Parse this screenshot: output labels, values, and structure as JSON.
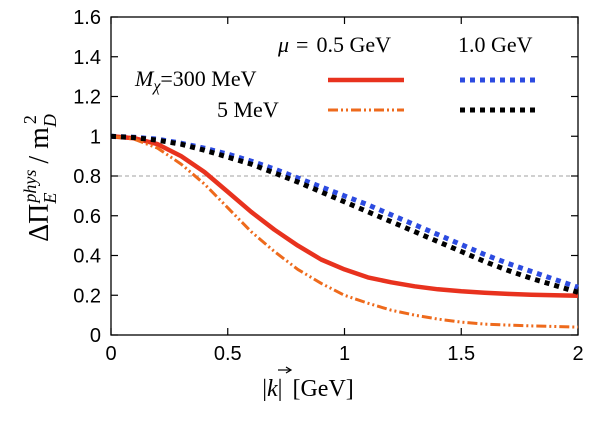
{
  "chart_data": {
    "type": "line",
    "title": "",
    "xlabel": "|k| [GeV]",
    "xlabel_parts": {
      "var": "k",
      "unit": "[GeV]"
    },
    "ylabel": "ΔΠ_E^phys / m_D^2",
    "ylabel_parts": {
      "delta": "ΔΠ",
      "sub": "E",
      "sup": "phys",
      "slash": "/ m",
      "sub2": "D",
      "sup2": "2"
    },
    "xlim": [
      0,
      2
    ],
    "ylim": [
      0,
      1.6
    ],
    "xticks": [
      "0",
      "0.5",
      "1",
      "1.5",
      "2"
    ],
    "yticks": [
      "0",
      "0.2",
      "0.4",
      "0.6",
      "0.8",
      "1",
      "1.2",
      "1.4",
      "1.6"
    ],
    "grid": false,
    "reference_line": {
      "y": 0.8,
      "style": "dashed",
      "color": "#a0a0a0"
    },
    "legend": {
      "placement": "top-right",
      "mu_header": {
        "symbol": "μ",
        "eq": "=",
        "value": "0.5 GeV"
      },
      "mu_header2": "1.0 GeV",
      "mass_row1": {
        "symbol": "M",
        "sub": "χ",
        "eq": "=300 MeV"
      },
      "mass_row2": "5 MeV"
    },
    "series": [
      {
        "color": "#e8321e",
        "dash": "solid",
        "x": [
          0,
          0.1,
          0.2,
          0.3,
          0.4,
          0.5,
          0.6,
          0.7,
          0.8,
          0.9,
          1.0,
          1.1,
          1.2,
          1.3,
          1.4,
          1.5,
          1.6,
          1.7,
          1.8,
          1.9,
          2.0
        ],
        "y": [
          1.0,
          0.99,
          0.96,
          0.9,
          0.82,
          0.72,
          0.62,
          0.53,
          0.45,
          0.38,
          0.33,
          0.29,
          0.265,
          0.245,
          0.23,
          0.22,
          0.213,
          0.207,
          0.203,
          0.2,
          0.197
        ]
      },
      {
        "color": "#ee6a1c",
        "dash": "dashdotdot",
        "x": [
          0,
          0.1,
          0.2,
          0.3,
          0.4,
          0.5,
          0.6,
          0.7,
          0.8,
          0.9,
          1.0,
          1.1,
          1.2,
          1.3,
          1.4,
          1.5,
          1.6,
          1.7,
          1.8,
          1.9,
          2.0
        ],
        "y": [
          1.0,
          0.985,
          0.94,
          0.86,
          0.76,
          0.64,
          0.52,
          0.42,
          0.33,
          0.26,
          0.2,
          0.16,
          0.125,
          0.1,
          0.08,
          0.065,
          0.055,
          0.05,
          0.046,
          0.043,
          0.04
        ]
      },
      {
        "color": "#2c4be0",
        "dash": "dotted",
        "x": [
          0,
          0.1,
          0.2,
          0.3,
          0.4,
          0.5,
          0.6,
          0.7,
          0.8,
          0.9,
          1.0,
          1.1,
          1.2,
          1.3,
          1.4,
          1.5,
          1.6,
          1.7,
          1.8,
          1.9,
          2.0
        ],
        "y": [
          1.0,
          0.995,
          0.985,
          0.965,
          0.94,
          0.91,
          0.875,
          0.835,
          0.79,
          0.745,
          0.7,
          0.655,
          0.605,
          0.555,
          0.505,
          0.455,
          0.405,
          0.36,
          0.32,
          0.28,
          0.24
        ]
      },
      {
        "color": "#000000",
        "dash": "dotted",
        "x": [
          0,
          0.1,
          0.2,
          0.3,
          0.4,
          0.5,
          0.6,
          0.7,
          0.8,
          0.9,
          1.0,
          1.1,
          1.2,
          1.3,
          1.4,
          1.5,
          1.6,
          1.7,
          1.8,
          1.9,
          2.0
        ],
        "y": [
          1.0,
          0.993,
          0.98,
          0.96,
          0.93,
          0.895,
          0.86,
          0.815,
          0.77,
          0.72,
          0.67,
          0.62,
          0.57,
          0.52,
          0.47,
          0.42,
          0.37,
          0.325,
          0.285,
          0.25,
          0.215
        ]
      }
    ]
  }
}
